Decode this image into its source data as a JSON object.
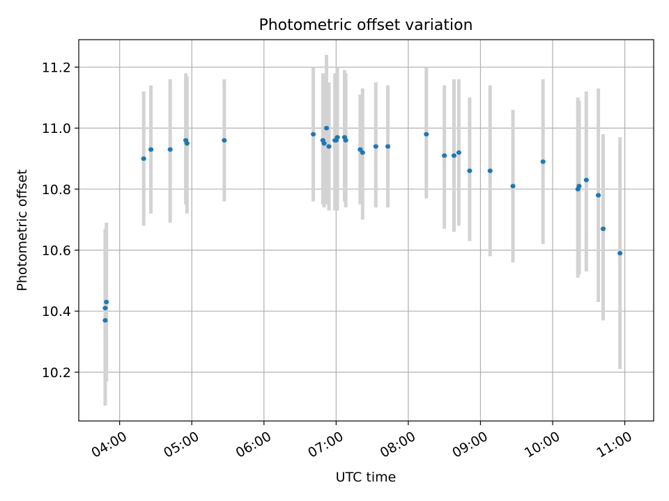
{
  "chart_data": {
    "type": "scatter",
    "title": "Photometric offset variation",
    "xlabel": "UTC time",
    "ylabel": "Photometric offset",
    "x_axis_kind": "time",
    "xlim": [
      "03:26",
      "11:24"
    ],
    "ylim": [
      10.04,
      11.29
    ],
    "x_ticks": [
      "04:00",
      "05:00",
      "06:00",
      "07:00",
      "08:00",
      "09:00",
      "10:00",
      "11:00"
    ],
    "y_ticks": [
      "10.2",
      "10.4",
      "10.6",
      "10.8",
      "11.0",
      "11.2"
    ],
    "y_tick_values": [
      10.2,
      10.4,
      10.6,
      10.8,
      11.0,
      11.2
    ],
    "grid": true,
    "legend": "none",
    "colors": {
      "point": "#1f77b4",
      "errorbar": "#d3d3d3",
      "grid": "#b0b0b0",
      "axes": "#000000"
    },
    "points": [
      {
        "x": "03:48",
        "y": 10.37,
        "ylow": 10.09,
        "yhigh": 10.65
      },
      {
        "x": "03:48",
        "y": 10.41,
        "ylow": 10.15,
        "yhigh": 10.67
      },
      {
        "x": "03:49",
        "y": 10.43,
        "ylow": 10.17,
        "yhigh": 10.69
      },
      {
        "x": "04:20",
        "y": 10.9,
        "ylow": 10.68,
        "yhigh": 11.12
      },
      {
        "x": "04:26",
        "y": 10.93,
        "ylow": 10.72,
        "yhigh": 11.14
      },
      {
        "x": "04:42",
        "y": 10.93,
        "ylow": 10.69,
        "yhigh": 11.16
      },
      {
        "x": "04:55",
        "y": 10.96,
        "ylow": 10.75,
        "yhigh": 11.18
      },
      {
        "x": "04:56",
        "y": 10.95,
        "ylow": 10.72,
        "yhigh": 11.17
      },
      {
        "x": "05:27",
        "y": 10.96,
        "ylow": 10.76,
        "yhigh": 11.16
      },
      {
        "x": "06:41",
        "y": 10.98,
        "ylow": 10.76,
        "yhigh": 11.2
      },
      {
        "x": "06:49",
        "y": 10.96,
        "ylow": 10.75,
        "yhigh": 11.18
      },
      {
        "x": "06:50",
        "y": 10.95,
        "ylow": 10.74,
        "yhigh": 11.17
      },
      {
        "x": "06:52",
        "y": 11.0,
        "ylow": 10.75,
        "yhigh": 11.24
      },
      {
        "x": "06:54",
        "y": 10.94,
        "ylow": 10.73,
        "yhigh": 11.15
      },
      {
        "x": "06:59",
        "y": 10.96,
        "ylow": 10.73,
        "yhigh": 11.18
      },
      {
        "x": "07:00",
        "y": 10.96,
        "ylow": 10.74,
        "yhigh": 11.18
      },
      {
        "x": "07:01",
        "y": 10.97,
        "ylow": 10.73,
        "yhigh": 11.2
      },
      {
        "x": "07:07",
        "y": 10.97,
        "ylow": 10.76,
        "yhigh": 11.19
      },
      {
        "x": "07:08",
        "y": 10.96,
        "ylow": 10.74,
        "yhigh": 11.18
      },
      {
        "x": "07:20",
        "y": 10.93,
        "ylow": 10.75,
        "yhigh": 11.11
      },
      {
        "x": "07:22",
        "y": 10.92,
        "ylow": 10.7,
        "yhigh": 11.13
      },
      {
        "x": "07:33",
        "y": 10.94,
        "ylow": 10.74,
        "yhigh": 11.15
      },
      {
        "x": "07:43",
        "y": 10.94,
        "ylow": 10.74,
        "yhigh": 11.14
      },
      {
        "x": "08:15",
        "y": 10.98,
        "ylow": 10.77,
        "yhigh": 11.2
      },
      {
        "x": "08:30",
        "y": 10.91,
        "ylow": 10.67,
        "yhigh": 11.14
      },
      {
        "x": "08:38",
        "y": 10.91,
        "ylow": 10.66,
        "yhigh": 11.16
      },
      {
        "x": "08:42",
        "y": 10.92,
        "ylow": 10.68,
        "yhigh": 11.16
      },
      {
        "x": "08:51",
        "y": 10.86,
        "ylow": 10.63,
        "yhigh": 11.1
      },
      {
        "x": "09:08",
        "y": 10.86,
        "ylow": 10.58,
        "yhigh": 11.14
      },
      {
        "x": "09:27",
        "y": 10.81,
        "ylow": 10.56,
        "yhigh": 11.06
      },
      {
        "x": "09:52",
        "y": 10.89,
        "ylow": 10.62,
        "yhigh": 11.16
      },
      {
        "x": "10:21",
        "y": 10.8,
        "ylow": 10.51,
        "yhigh": 11.1
      },
      {
        "x": "10:22",
        "y": 10.81,
        "ylow": 10.52,
        "yhigh": 11.09
      },
      {
        "x": "10:28",
        "y": 10.83,
        "ylow": 10.53,
        "yhigh": 11.12
      },
      {
        "x": "10:38",
        "y": 10.78,
        "ylow": 10.43,
        "yhigh": 11.13
      },
      {
        "x": "10:42",
        "y": 10.67,
        "ylow": 10.37,
        "yhigh": 10.98
      },
      {
        "x": "10:56",
        "y": 10.59,
        "ylow": 10.21,
        "yhigh": 10.97
      }
    ]
  }
}
